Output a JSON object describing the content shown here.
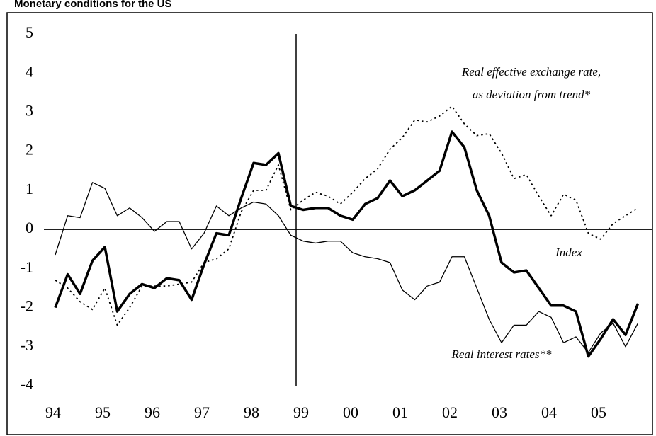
{
  "chart_data": {
    "type": "line",
    "title": "Monetary conditions for the US",
    "categories": [
      "94",
      null,
      null,
      null,
      "95",
      null,
      null,
      null,
      "96",
      null,
      null,
      null,
      "97",
      null,
      null,
      null,
      "98",
      null,
      null,
      null,
      "99",
      null,
      null,
      null,
      "00",
      null,
      null,
      null,
      "01",
      null,
      null,
      null,
      "02",
      null,
      null,
      null,
      "03",
      null,
      null,
      null,
      "04",
      null,
      null,
      null,
      "05",
      null,
      null,
      null
    ],
    "series": [
      {
        "name": "Index",
        "color": "#000000",
        "linewidth": 3.5,
        "style": "solid",
        "values": [
          -2.0,
          -1.15,
          -1.65,
          -0.8,
          -0.45,
          -2.1,
          -1.65,
          -1.4,
          -1.5,
          -1.25,
          -1.3,
          -1.8,
          -0.9,
          -0.1,
          -0.15,
          0.8,
          1.7,
          1.65,
          1.95,
          0.6,
          0.5,
          0.55,
          0.55,
          0.35,
          0.25,
          0.65,
          0.8,
          1.25,
          0.85,
          1.0,
          1.25,
          1.5,
          2.5,
          2.1,
          1.0,
          0.35,
          -0.85,
          -1.1,
          -1.05,
          -1.5,
          -1.95,
          -1.95,
          -2.1,
          -3.25,
          -2.8,
          -2.3,
          -2.7,
          -1.9
        ]
      },
      {
        "name": "Real interest rates**",
        "color": "#000000",
        "linewidth": 1.3,
        "style": "solid",
        "values": [
          -0.65,
          0.35,
          0.3,
          1.2,
          1.05,
          0.35,
          0.55,
          0.3,
          -0.05,
          0.2,
          0.2,
          -0.5,
          -0.1,
          0.6,
          0.35,
          0.55,
          0.7,
          0.65,
          0.35,
          -0.15,
          -0.3,
          -0.35,
          -0.3,
          -0.3,
          -0.6,
          -0.7,
          -0.75,
          -0.85,
          -1.55,
          -1.8,
          -1.45,
          -1.35,
          -0.7,
          -0.7,
          -1.5,
          -2.3,
          -2.9,
          -2.45,
          -2.45,
          -2.1,
          -2.25,
          -2.9,
          -2.75,
          -3.15,
          -2.65,
          -2.4,
          -3.0,
          -2.4
        ]
      },
      {
        "name": "Real effective exchange rate, as deviation from trend*",
        "color": "#000000",
        "linewidth": 1.8,
        "style": "dotted",
        "values": [
          -1.3,
          -1.5,
          -1.85,
          -2.05,
          -1.5,
          -2.45,
          -2.0,
          -1.45,
          -1.45,
          -1.45,
          -1.4,
          -1.35,
          -0.85,
          -0.75,
          -0.5,
          0.45,
          1.0,
          1.0,
          1.65,
          0.5,
          0.75,
          0.95,
          0.85,
          0.65,
          0.95,
          1.3,
          1.55,
          2.05,
          2.35,
          2.8,
          2.75,
          2.9,
          3.15,
          2.7,
          2.4,
          2.45,
          1.95,
          1.3,
          1.4,
          0.85,
          0.35,
          0.9,
          0.75,
          -0.1,
          -0.25,
          0.15,
          0.35,
          0.55
        ]
      }
    ],
    "annotations": [
      "Real effective exchange rate,",
      "as deviation from trend*",
      "Index",
      "Real interest rates**"
    ],
    "ylim": [
      -4,
      5
    ],
    "yticks": [
      -4,
      -3,
      -2,
      -1,
      0,
      1,
      2,
      3,
      4,
      5
    ]
  }
}
